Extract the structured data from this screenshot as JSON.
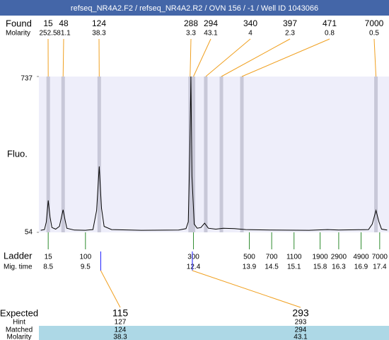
{
  "header": {
    "title": "refseq_NR4A2.F2 / refseq_NR4A2.R2 / OVN 156 / -1 / Well ID 1043066"
  },
  "chart_data": {
    "type": "line",
    "found_label": "Found",
    "molarity_label": "Molarity",
    "y_label": "Fluo.",
    "found": {
      "sizes": [
        15,
        48,
        124,
        288,
        294,
        340,
        397,
        471,
        7000
      ],
      "molarity": [
        252.5,
        81.1,
        38.3,
        3.3,
        43.1,
        4,
        2.3,
        0.8,
        0.5
      ],
      "times": [
        8.5,
        8.9,
        9.87,
        12.31,
        12.4,
        12.73,
        13.15,
        13.7,
        17.3
      ]
    },
    "ylim": [
      54,
      737
    ],
    "yticks": [
      54,
      737
    ],
    "xlim": [
      8.25,
      17.65
    ],
    "color": "#000000",
    "x": [
      8.3,
      8.4,
      8.45,
      8.5,
      8.55,
      8.6,
      8.7,
      8.8,
      8.9,
      8.95,
      9.0,
      9.2,
      9.5,
      9.7,
      9.8,
      9.87,
      9.93,
      10.0,
      10.2,
      11.0,
      12.0,
      12.2,
      12.26,
      12.3,
      12.33,
      12.36,
      12.42,
      12.5,
      12.6,
      12.7,
      12.8,
      13.0,
      13.2,
      13.5,
      13.8,
      14.5,
      15.5,
      16.0,
      16.3,
      17.1,
      17.2,
      17.3,
      17.38,
      17.45,
      17.6
    ],
    "values": [
      63,
      66,
      100,
      194,
      120,
      75,
      68,
      80,
      153,
      110,
      72,
      64,
      63,
      66,
      150,
      343,
      160,
      80,
      66,
      63,
      64,
      70,
      100,
      400,
      737,
      300,
      90,
      72,
      75,
      94,
      72,
      68,
      72,
      70,
      66,
      64,
      63,
      66,
      64,
      66,
      90,
      150,
      100,
      68,
      64
    ],
    "ladder": {
      "label": "Ladder",
      "time_label": "Mig. time",
      "sizes": [
        15,
        100,
        300,
        500,
        700,
        1100,
        1900,
        2900,
        4900,
        7000
      ],
      "times": [
        8.5,
        9.5,
        12.4,
        13.9,
        14.5,
        15.1,
        15.8,
        16.3,
        16.9,
        17.4
      ]
    },
    "expected": {
      "label": "Expected",
      "hint_label": "Hint",
      "matched_label": "Matched",
      "molarity_label": "Molarity",
      "sizes": [
        115,
        293
      ],
      "times": [
        9.91,
        12.37
      ],
      "hint": [
        127,
        293
      ],
      "matched": [
        124,
        294
      ],
      "molarity": [
        38.3,
        43.1
      ]
    }
  }
}
